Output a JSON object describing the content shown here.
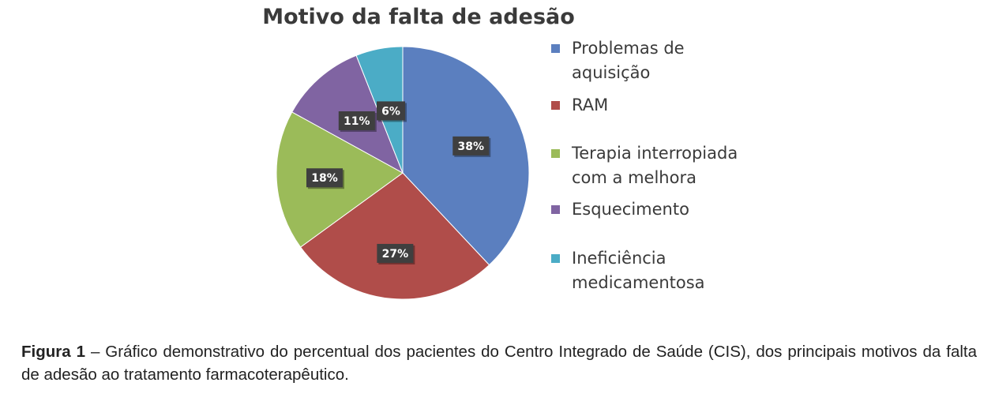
{
  "chart_data": {
    "type": "pie",
    "title": "Motivo da falta de adesão",
    "legend_position": "right",
    "slices": [
      {
        "label": "Problemas de aquisição",
        "label_lines": [
          "Problemas de",
          "aquisição"
        ],
        "value": 38,
        "value_label": "38%",
        "color": "#5b7fbf"
      },
      {
        "label": "RAM",
        "label_lines": [
          "RAM"
        ],
        "value": 27,
        "value_label": "27%",
        "color": "#b04d4a"
      },
      {
        "label": "Terapia interropiada com a melhora",
        "label_lines": [
          "Terapia interropiada",
          "com a melhora"
        ],
        "value": 18,
        "value_label": "18%",
        "color": "#9bbb59"
      },
      {
        "label": "Esquecimento",
        "label_lines": [
          "Esquecimento"
        ],
        "value": 11,
        "value_label": "11%",
        "color": "#8064a2"
      },
      {
        "label": "Ineficiência medicamentosa",
        "label_lines": [
          "Ineficiência",
          "medicamentosa"
        ],
        "value": 6,
        "value_label": "6%",
        "color": "#4bacc6"
      }
    ]
  },
  "caption": {
    "label": "Figura 1",
    "text": " – Gráfico demonstrativo do percentual dos pacientes do Centro Integrado de Saúde (CIS), dos principais motivos da falta de adesão ao tratamento farmacoterapêutico."
  }
}
